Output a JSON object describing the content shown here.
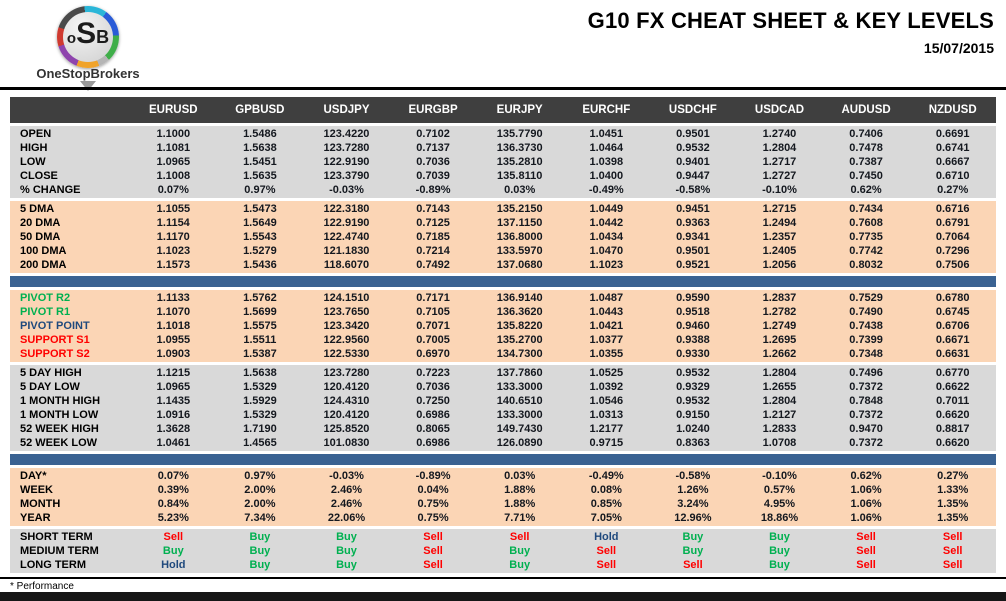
{
  "page": {
    "title": "G10 FX CHEAT SHEET & KEY LEVELS",
    "date": "15/07/2015",
    "footnote": "* Performance",
    "logo": {
      "o": "o",
      "s": "S",
      "b": "B",
      "brand": "OneStopBrokers"
    }
  },
  "table": {
    "columns": [
      "EURUSD",
      "GPBUSD",
      "USDJPY",
      "EURGBP",
      "EURJPY",
      "EURCHF",
      "USDCHF",
      "USDCAD",
      "AUDUSD",
      "NZDUSD"
    ],
    "signal_colors": {
      "Buy": "#00b050",
      "Sell": "#ff0000",
      "Hold": "#1f497d"
    },
    "section_colors": {
      "gray": "#d9d9d9",
      "peach": "#fbd5b5",
      "divider": "#3a6292",
      "head": "#3f3f3f"
    },
    "sections": [
      {
        "name": "ohlc",
        "bg": "#d9d9d9",
        "divider_after": false,
        "rows": [
          {
            "label": "OPEN",
            "values": [
              "1.1000",
              "1.5486",
              "123.4220",
              "0.7102",
              "135.7790",
              "1.0451",
              "0.9501",
              "1.2740",
              "0.7406",
              "0.6691"
            ]
          },
          {
            "label": "HIGH",
            "values": [
              "1.1081",
              "1.5638",
              "123.7280",
              "0.7137",
              "136.3730",
              "1.0464",
              "0.9532",
              "1.2804",
              "0.7478",
              "0.6741"
            ]
          },
          {
            "label": "LOW",
            "values": [
              "1.0965",
              "1.5451",
              "122.9190",
              "0.7036",
              "135.2810",
              "1.0398",
              "0.9401",
              "1.2717",
              "0.7387",
              "0.6667"
            ]
          },
          {
            "label": "CLOSE",
            "values": [
              "1.1008",
              "1.5635",
              "123.3790",
              "0.7039",
              "135.8110",
              "1.0400",
              "0.9447",
              "1.2727",
              "0.7450",
              "0.6710"
            ]
          },
          {
            "label": "% CHANGE",
            "values": [
              "0.07%",
              "0.97%",
              "-0.03%",
              "-0.89%",
              "0.03%",
              "-0.49%",
              "-0.58%",
              "-0.10%",
              "0.62%",
              "0.27%"
            ]
          }
        ]
      },
      {
        "name": "dma",
        "bg": "#fbd5b5",
        "divider_after": true,
        "rows": [
          {
            "label": "5 DMA",
            "values": [
              "1.1055",
              "1.5473",
              "122.3180",
              "0.7143",
              "135.2150",
              "1.0449",
              "0.9451",
              "1.2715",
              "0.7434",
              "0.6716"
            ]
          },
          {
            "label": "20 DMA",
            "values": [
              "1.1154",
              "1.5649",
              "122.9190",
              "0.7125",
              "137.1150",
              "1.0442",
              "0.9363",
              "1.2494",
              "0.7608",
              "0.6791"
            ]
          },
          {
            "label": "50 DMA",
            "values": [
              "1.1170",
              "1.5543",
              "122.4740",
              "0.7185",
              "136.8000",
              "1.0434",
              "0.9341",
              "1.2357",
              "0.7735",
              "0.7064"
            ]
          },
          {
            "label": "100 DMA",
            "values": [
              "1.1023",
              "1.5279",
              "121.1830",
              "0.7214",
              "133.5970",
              "1.0470",
              "0.9501",
              "1.2405",
              "0.7742",
              "0.7296"
            ]
          },
          {
            "label": "200 DMA",
            "values": [
              "1.1573",
              "1.5436",
              "118.6070",
              "0.7492",
              "137.0680",
              "1.1023",
              "0.9521",
              "1.2056",
              "0.8032",
              "0.7506"
            ]
          }
        ]
      },
      {
        "name": "pivots",
        "bg": "#fbd5b5",
        "divider_after": false,
        "rows": [
          {
            "label": "PIVOT R2",
            "label_color": "#00b050",
            "values": [
              "1.1133",
              "1.5762",
              "124.1510",
              "0.7171",
              "136.9140",
              "1.0487",
              "0.9590",
              "1.2837",
              "0.7529",
              "0.6780"
            ]
          },
          {
            "label": "PIVOT R1",
            "label_color": "#00b050",
            "values": [
              "1.1070",
              "1.5699",
              "123.7650",
              "0.7105",
              "136.3620",
              "1.0443",
              "0.9518",
              "1.2782",
              "0.7490",
              "0.6745"
            ]
          },
          {
            "label": "PIVOT POINT",
            "label_color": "#1f497d",
            "values": [
              "1.1018",
              "1.5575",
              "123.3420",
              "0.7071",
              "135.8220",
              "1.0421",
              "0.9460",
              "1.2749",
              "0.7438",
              "0.6706"
            ]
          },
          {
            "label": "SUPPORT S1",
            "label_color": "#ff0000",
            "values": [
              "1.0955",
              "1.5511",
              "122.9560",
              "0.7005",
              "135.2700",
              "1.0377",
              "0.9388",
              "1.2695",
              "0.7399",
              "0.6671"
            ]
          },
          {
            "label": "SUPPORT S2",
            "label_color": "#ff0000",
            "values": [
              "1.0903",
              "1.5387",
              "122.5330",
              "0.6970",
              "134.7300",
              "1.0355",
              "0.9330",
              "1.2662",
              "0.7348",
              "0.6631"
            ]
          }
        ]
      },
      {
        "name": "ranges",
        "bg": "#d9d9d9",
        "divider_after": true,
        "rows": [
          {
            "label": "5 DAY HIGH",
            "values": [
              "1.1215",
              "1.5638",
              "123.7280",
              "0.7223",
              "137.7860",
              "1.0525",
              "0.9532",
              "1.2804",
              "0.7496",
              "0.6770"
            ]
          },
          {
            "label": "5 DAY LOW",
            "values": [
              "1.0965",
              "1.5329",
              "120.4120",
              "0.7036",
              "133.3000",
              "1.0392",
              "0.9329",
              "1.2655",
              "0.7372",
              "0.6622"
            ]
          },
          {
            "label": "1 MONTH HIGH",
            "values": [
              "1.1435",
              "1.5929",
              "124.4310",
              "0.7250",
              "140.6510",
              "1.0546",
              "0.9532",
              "1.2804",
              "0.7848",
              "0.7011"
            ]
          },
          {
            "label": "1 MONTH LOW",
            "values": [
              "1.0916",
              "1.5329",
              "120.4120",
              "0.6986",
              "133.3000",
              "1.0313",
              "0.9150",
              "1.2127",
              "0.7372",
              "0.6620"
            ]
          },
          {
            "label": "52 WEEK HIGH",
            "values": [
              "1.3628",
              "1.7190",
              "125.8520",
              "0.8065",
              "149.7430",
              "1.2177",
              "1.0240",
              "1.2833",
              "0.9470",
              "0.8817"
            ]
          },
          {
            "label": "52 WEEK LOW",
            "values": [
              "1.0461",
              "1.4565",
              "101.0830",
              "0.6986",
              "126.0890",
              "0.9715",
              "0.8363",
              "1.0708",
              "0.7372",
              "0.6620"
            ]
          }
        ]
      },
      {
        "name": "performance",
        "bg": "#fbd5b5",
        "divider_after": false,
        "rows": [
          {
            "label": "DAY*",
            "values": [
              "0.07%",
              "0.97%",
              "-0.03%",
              "-0.89%",
              "0.03%",
              "-0.49%",
              "-0.58%",
              "-0.10%",
              "0.62%",
              "0.27%"
            ]
          },
          {
            "label": "WEEK",
            "values": [
              "0.39%",
              "2.00%",
              "2.46%",
              "0.04%",
              "1.88%",
              "0.08%",
              "1.26%",
              "0.57%",
              "1.06%",
              "1.33%"
            ]
          },
          {
            "label": "MONTH",
            "values": [
              "0.84%",
              "2.00%",
              "2.46%",
              "0.75%",
              "1.88%",
              "0.85%",
              "3.24%",
              "4.95%",
              "1.06%",
              "1.35%"
            ]
          },
          {
            "label": "YEAR",
            "values": [
              "5.23%",
              "7.34%",
              "22.06%",
              "0.75%",
              "7.71%",
              "7.05%",
              "12.96%",
              "18.86%",
              "1.06%",
              "1.35%"
            ]
          }
        ]
      },
      {
        "name": "signals",
        "bg": "#d9d9d9",
        "divider_after": false,
        "rows": [
          {
            "label": "SHORT TERM",
            "values": [
              "Sell",
              "Buy",
              "Buy",
              "Sell",
              "Sell",
              "Hold",
              "Buy",
              "Buy",
              "Sell",
              "Sell"
            ]
          },
          {
            "label": "MEDIUM TERM",
            "values": [
              "Buy",
              "Buy",
              "Buy",
              "Sell",
              "Buy",
              "Sell",
              "Buy",
              "Buy",
              "Sell",
              "Sell"
            ]
          },
          {
            "label": "LONG TERM",
            "values": [
              "Hold",
              "Buy",
              "Buy",
              "Sell",
              "Buy",
              "Sell",
              "Sell",
              "Buy",
              "Sell",
              "Sell"
            ]
          }
        ]
      }
    ]
  }
}
